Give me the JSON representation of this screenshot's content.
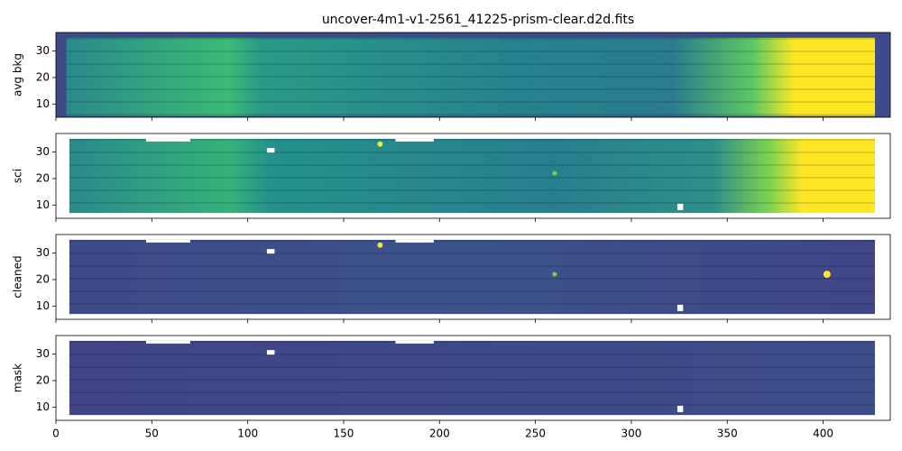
{
  "chart_data": [
    {
      "type": "image",
      "title": "uncover-4m1-v1-2561_41225-prism-clear.d2d.fits",
      "ylabel": "avg bkg",
      "xlim": [
        0,
        435
      ],
      "ylim": [
        5,
        37
      ],
      "yticks": [
        10,
        20,
        30
      ]
    },
    {
      "type": "image",
      "ylabel": "sci",
      "xlim": [
        0,
        435
      ],
      "ylim": [
        5,
        37
      ],
      "yticks": [
        10,
        20,
        30
      ]
    },
    {
      "type": "image",
      "ylabel": "cleaned",
      "xlim": [
        0,
        435
      ],
      "ylim": [
        5,
        37
      ],
      "yticks": [
        10,
        20,
        30
      ]
    },
    {
      "type": "image",
      "ylabel": "mask",
      "xlim": [
        0,
        435
      ],
      "ylim": [
        5,
        37
      ],
      "yticks": [
        10,
        20,
        30
      ],
      "xticks": [
        0,
        50,
        100,
        150,
        200,
        250,
        300,
        350,
        400
      ]
    }
  ]
}
